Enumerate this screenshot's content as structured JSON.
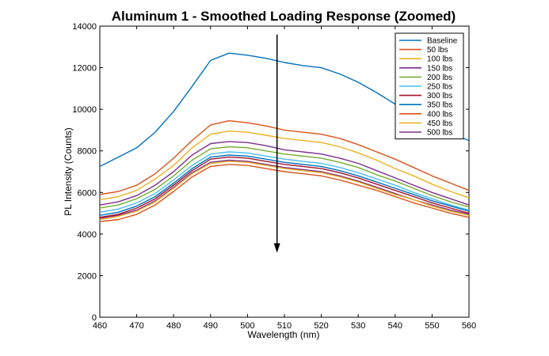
{
  "chart_data": {
    "type": "line",
    "title": "Aluminum 1 - Smoothed Loading Response (Zoomed)",
    "xlabel": "Wavelength (nm)",
    "ylabel": "PL Intensity (Counts)",
    "xlim": [
      460,
      560
    ],
    "ylim": [
      0,
      14000
    ],
    "x_ticks": [
      "460",
      "470",
      "480",
      "490",
      "500",
      "510",
      "520",
      "530",
      "540",
      "550",
      "560"
    ],
    "y_ticks": [
      "0",
      "2000",
      "4000",
      "6000",
      "8000",
      "10000",
      "12000",
      "14000"
    ],
    "grid": false,
    "legend_position": "top-right",
    "x": [
      460,
      465,
      470,
      475,
      480,
      485,
      490,
      495,
      500,
      505,
      510,
      515,
      520,
      525,
      530,
      535,
      540,
      545,
      550,
      555,
      560
    ],
    "series": [
      {
        "name": "Baseline",
        "color": "#0072bd",
        "values": [
          7250,
          7700,
          8150,
          8900,
          9900,
          11100,
          12350,
          12700,
          12600,
          12450,
          12250,
          12100,
          12000,
          11700,
          11300,
          10800,
          10250,
          9700,
          9250,
          8850,
          8500
        ]
      },
      {
        "name": "50 lbs",
        "color": "#d95319",
        "values": [
          5900,
          6050,
          6350,
          6900,
          7650,
          8500,
          9250,
          9450,
          9350,
          9200,
          9000,
          8900,
          8800,
          8600,
          8300,
          7950,
          7600,
          7200,
          6800,
          6450,
          6100
        ]
      },
      {
        "name": "100 lbs",
        "color": "#edb120",
        "values": [
          5650,
          5800,
          6100,
          6650,
          7300,
          8150,
          8800,
          8950,
          8900,
          8750,
          8600,
          8500,
          8400,
          8200,
          7900,
          7550,
          7150,
          6800,
          6400,
          6050,
          5750
        ]
      },
      {
        "name": "150 lbs",
        "color": "#7e2f8e",
        "values": [
          5400,
          5550,
          5850,
          6350,
          7000,
          7800,
          8350,
          8450,
          8400,
          8250,
          8050,
          7950,
          7850,
          7650,
          7400,
          7050,
          6700,
          6350,
          6000,
          5700,
          5400
        ]
      },
      {
        "name": "200 lbs",
        "color": "#77ac30",
        "values": [
          5250,
          5400,
          5700,
          6150,
          6800,
          7550,
          8100,
          8200,
          8150,
          8000,
          7850,
          7750,
          7650,
          7450,
          7200,
          6850,
          6550,
          6200,
          5850,
          5550,
          5300
        ]
      },
      {
        "name": "250 lbs",
        "color": "#4dbeee",
        "values": [
          5050,
          5200,
          5500,
          5950,
          6600,
          7300,
          7850,
          7950,
          7900,
          7750,
          7600,
          7500,
          7400,
          7200,
          6950,
          6650,
          6350,
          6000,
          5700,
          5400,
          5150
        ]
      },
      {
        "name": "300 lbs",
        "color": "#a2142f",
        "values": [
          4800,
          4950,
          5250,
          5700,
          6350,
          7050,
          7600,
          7700,
          7650,
          7500,
          7350,
          7250,
          7150,
          6950,
          6700,
          6400,
          6100,
          5800,
          5500,
          5250,
          5000
        ]
      },
      {
        "name": "350 lbs",
        "color": "#0072bd",
        "values": [
          4900,
          5050,
          5350,
          5800,
          6450,
          7150,
          7700,
          7800,
          7750,
          7600,
          7450,
          7350,
          7250,
          7050,
          6800,
          6500,
          6200,
          5900,
          5600,
          5350,
          5100
        ]
      },
      {
        "name": "400 lbs",
        "color": "#d95319",
        "values": [
          4600,
          4700,
          4950,
          5400,
          6050,
          6750,
          7250,
          7350,
          7300,
          7150,
          7000,
          6900,
          6800,
          6600,
          6350,
          6100,
          5800,
          5500,
          5250,
          5000,
          4800
        ]
      },
      {
        "name": "450 lbs",
        "color": "#edb120",
        "values": [
          4700,
          4850,
          5100,
          5550,
          6200,
          6900,
          7400,
          7500,
          7450,
          7300,
          7150,
          7050,
          6950,
          6750,
          6500,
          6200,
          5900,
          5650,
          5350,
          5100,
          4900
        ]
      },
      {
        "name": "500 lbs",
        "color": "#7e2f8e",
        "values": [
          4750,
          4900,
          5150,
          5600,
          6250,
          6950,
          7450,
          7550,
          7500,
          7350,
          7200,
          7100,
          7000,
          6800,
          6550,
          6250,
          5950,
          5650,
          5400,
          5150,
          4950
        ]
      }
    ],
    "annotation": {
      "type": "arrow",
      "x": 508,
      "y_start": 13600,
      "y_end": 3100
    }
  }
}
